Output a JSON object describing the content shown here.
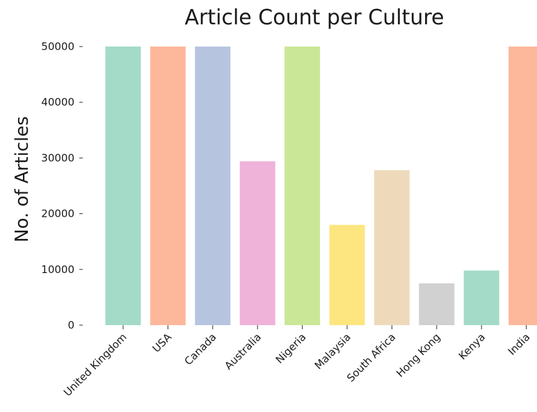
{
  "chart_data": {
    "type": "bar",
    "title": "Article Count per Culture",
    "xlabel": "",
    "ylabel": "No. of Articles",
    "categories": [
      "United Kingdom",
      "USA",
      "Canada",
      "Australia",
      "Nigeria",
      "Malaysia",
      "South Africa",
      "Hong Kong",
      "Kenya",
      "India"
    ],
    "values": [
      50000,
      50000,
      50000,
      29400,
      50000,
      18000,
      27800,
      7500,
      9800,
      50000
    ],
    "colors": [
      "#a3dbc8",
      "#fdb89c",
      "#b7c4e0",
      "#efb2d9",
      "#cae797",
      "#fde57f",
      "#eedabb",
      "#d1d1d1",
      "#a3dbc8",
      "#fdb89c"
    ],
    "ylim": [
      0,
      50000
    ],
    "yticks": [
      0,
      10000,
      20000,
      30000,
      40000,
      50000
    ],
    "grid": false,
    "legend": "none"
  }
}
